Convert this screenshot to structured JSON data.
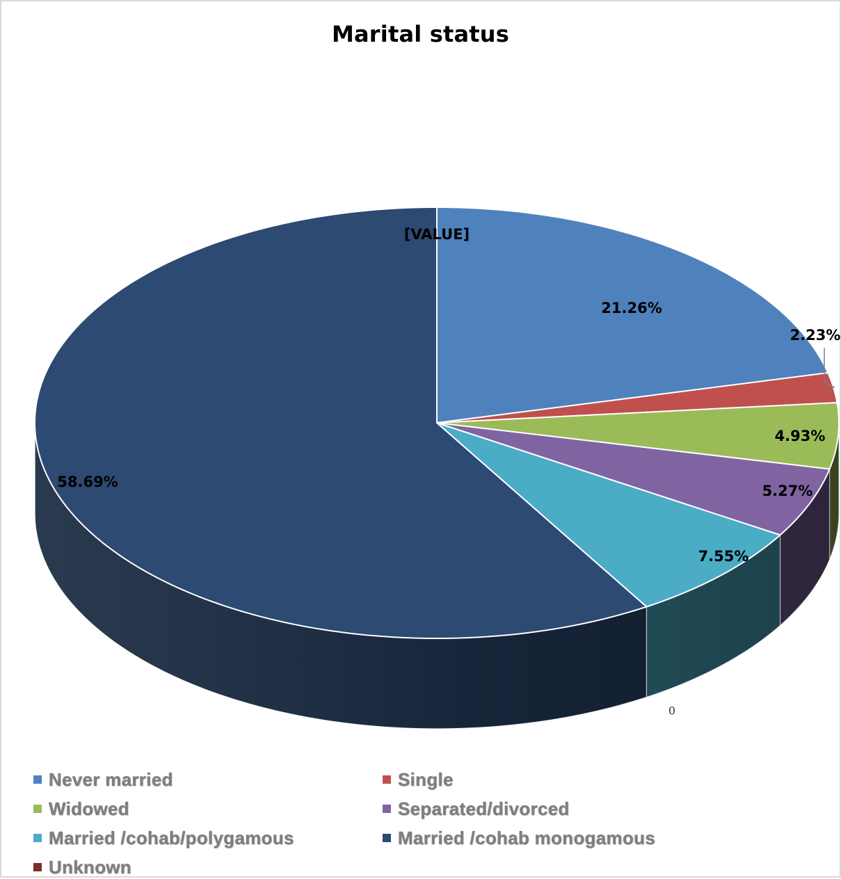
{
  "chart_data": {
    "type": "pie",
    "title": "Marital status",
    "categories": [
      "Never married",
      "Single",
      "Widowed",
      "Separated/divorced",
      "Married /cohab/polygamous",
      "Married /cohab monogamous",
      "Unknown"
    ],
    "values": [
      21.26,
      2.23,
      4.93,
      5.27,
      7.55,
      58.69,
      0
    ],
    "data_labels": [
      "21.26%",
      "2.23%",
      "4.93%",
      "5.27%",
      "7.55%",
      "58.69%",
      "[VALUE]"
    ],
    "extra_label": "0",
    "colors": [
      "#4f81bd",
      "#c0504d",
      "#9bbb59",
      "#8064a2",
      "#4bacc6",
      "#2c4a72",
      "#7b2c2c"
    ],
    "legend_position": "bottom",
    "style": "3d-pie"
  }
}
